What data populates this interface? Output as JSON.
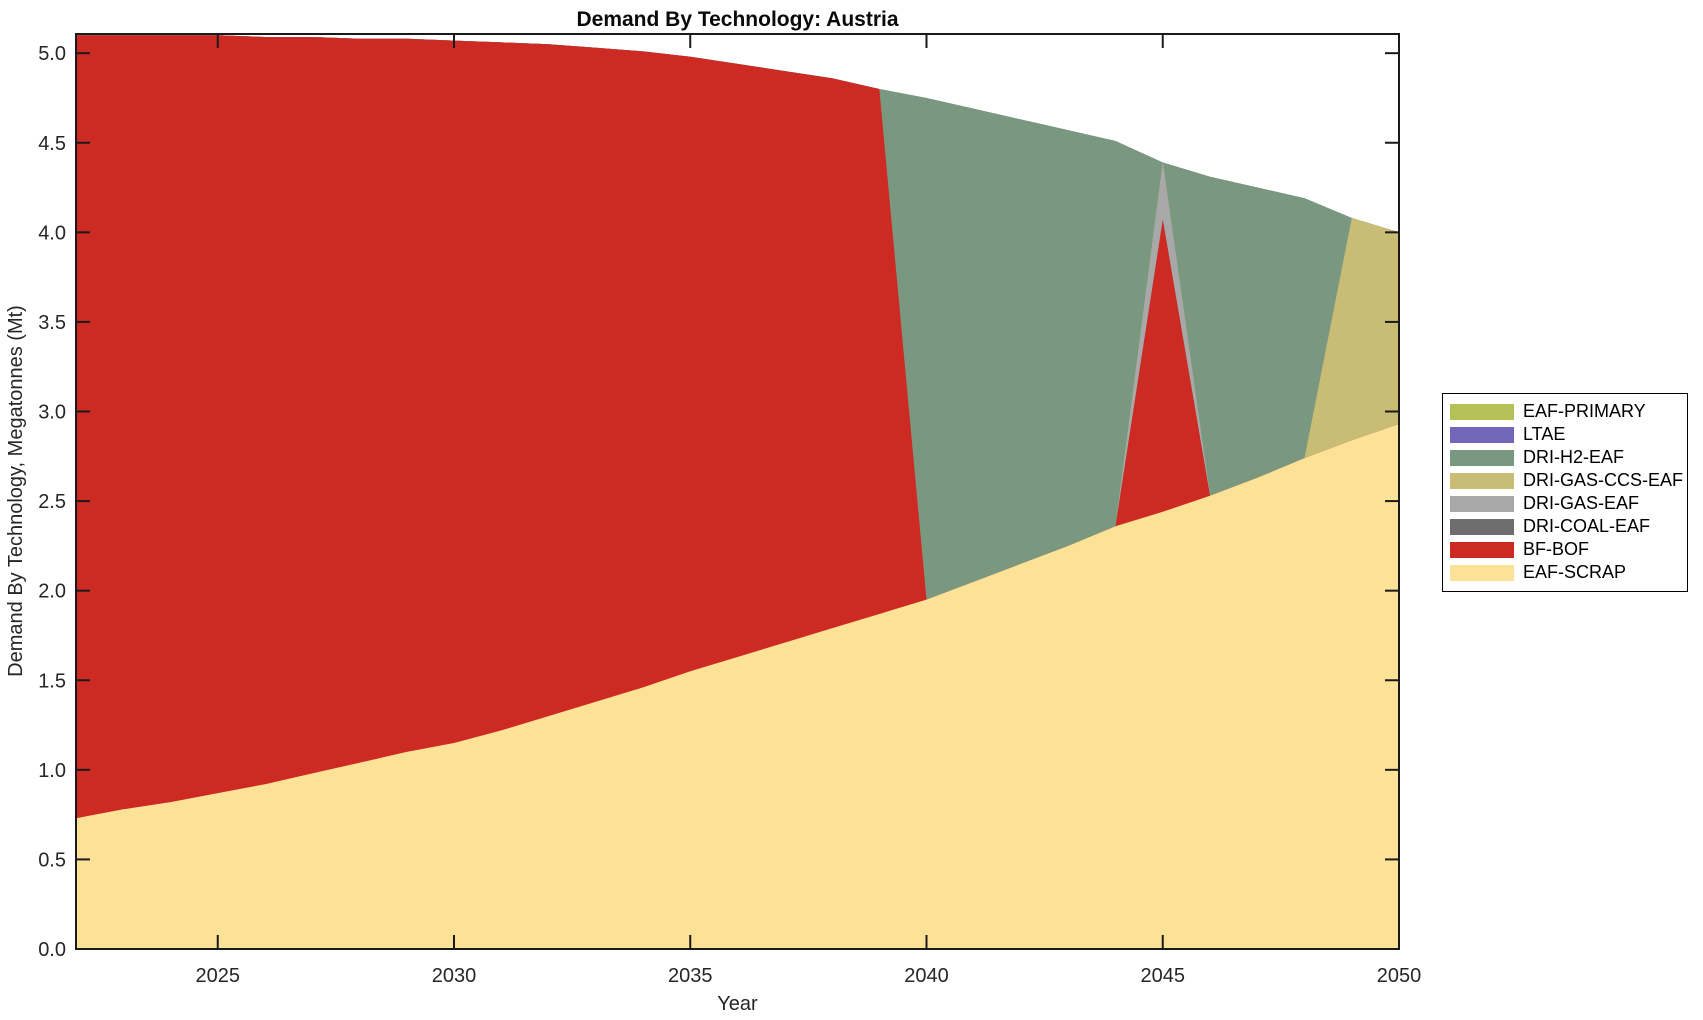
{
  "chart_data": {
    "type": "area",
    "stacked": true,
    "title": "Demand By Technology: Austria",
    "xlabel": "Year",
    "ylabel": "Demand By Technology, Megatonnes (Mt)",
    "xlim": [
      2022,
      2050
    ],
    "ylim": [
      0,
      5.107
    ],
    "xticks": [
      2025,
      2030,
      2035,
      2040,
      2045,
      2050
    ],
    "yticks": [
      0.0,
      0.5,
      1.0,
      1.5,
      2.0,
      2.5,
      3.0,
      3.5,
      4.0,
      4.5,
      5.0
    ],
    "ytick_decimals": 1,
    "grid": false,
    "legend_position": "right-outside",
    "legend_top_to_bottom": [
      "EAF-PRIMARY",
      "LTAE",
      "DRI-H2-EAF",
      "DRI-GAS-CCS-EAF",
      "DRI-GAS-EAF",
      "DRI-COAL-EAF",
      "BF-BOF",
      "EAF-SCRAP"
    ],
    "axis_color": "#1a1a1a",
    "x": [
      2022,
      2023,
      2024,
      2025,
      2026,
      2027,
      2028,
      2029,
      2030,
      2031,
      2032,
      2033,
      2034,
      2035,
      2036,
      2037,
      2038,
      2039,
      2040,
      2041,
      2042,
      2043,
      2044,
      2045,
      2046,
      2047,
      2048,
      2049,
      2050
    ],
    "series": [
      {
        "name": "EAF-SCRAP",
        "color": "#fce296",
        "values": [
          0.73,
          0.78,
          0.82,
          0.87,
          0.92,
          0.98,
          1.04,
          1.1,
          1.15,
          1.22,
          1.3,
          1.38,
          1.46,
          1.55,
          1.63,
          1.71,
          1.79,
          1.87,
          1.95,
          2.05,
          2.15,
          2.25,
          2.36,
          2.44,
          2.53,
          2.63,
          2.74,
          2.84,
          2.93
        ]
      },
      {
        "name": "BF-BOF",
        "color": "#cd2a23",
        "values": [
          4.37,
          4.32,
          4.28,
          4.23,
          4.17,
          4.11,
          4.04,
          3.98,
          3.92,
          3.84,
          3.75,
          3.65,
          3.55,
          3.43,
          3.31,
          3.19,
          3.07,
          2.93,
          0,
          0,
          0,
          0,
          0,
          1.63,
          0,
          0,
          0,
          0,
          0
        ]
      },
      {
        "name": "DRI-COAL-EAF",
        "color": "#6e6e6e",
        "values": [
          0,
          0,
          0,
          0,
          0,
          0,
          0,
          0,
          0,
          0,
          0,
          0,
          0,
          0,
          0,
          0,
          0,
          0,
          0,
          0,
          0,
          0,
          0,
          0,
          0,
          0,
          0,
          0,
          0
        ]
      },
      {
        "name": "DRI-GAS-EAF",
        "color": "#a8a8a8",
        "values": [
          0,
          0,
          0,
          0,
          0,
          0,
          0,
          0,
          0,
          0,
          0,
          0,
          0,
          0,
          0,
          0,
          0,
          0,
          0,
          0,
          0,
          0,
          0,
          0.32,
          0,
          0,
          0,
          0,
          0
        ]
      },
      {
        "name": "DRI-GAS-CCS-EAF",
        "color": "#c9bd76",
        "values": [
          0,
          0,
          0,
          0,
          0,
          0,
          0,
          0,
          0,
          0,
          0,
          0,
          0,
          0,
          0,
          0,
          0,
          0,
          0,
          0,
          0,
          0,
          0,
          0,
          0,
          0,
          0,
          1.24,
          1.07
        ]
      },
      {
        "name": "DRI-H2-EAF",
        "color": "#7a987f",
        "values": [
          0,
          0,
          0,
          0,
          0,
          0,
          0,
          0,
          0,
          0,
          0,
          0,
          0,
          0,
          0,
          0,
          0,
          0,
          2.8,
          2.64,
          2.48,
          2.32,
          2.15,
          0,
          1.78,
          1.62,
          1.45,
          0,
          0
        ]
      },
      {
        "name": "LTAE",
        "color": "#7267b8",
        "values": [
          0,
          0,
          0,
          0,
          0,
          0,
          0,
          0,
          0,
          0,
          0,
          0,
          0,
          0,
          0,
          0,
          0,
          0,
          0,
          0,
          0,
          0,
          0,
          0,
          0,
          0,
          0,
          0,
          0
        ]
      },
      {
        "name": "EAF-PRIMARY",
        "color": "#b4c156",
        "values": [
          0,
          0,
          0,
          0,
          0,
          0,
          0,
          0,
          0,
          0,
          0,
          0,
          0,
          0,
          0,
          0,
          0,
          0,
          0,
          0,
          0,
          0,
          0,
          0,
          0,
          0,
          0,
          0,
          0
        ]
      }
    ]
  }
}
